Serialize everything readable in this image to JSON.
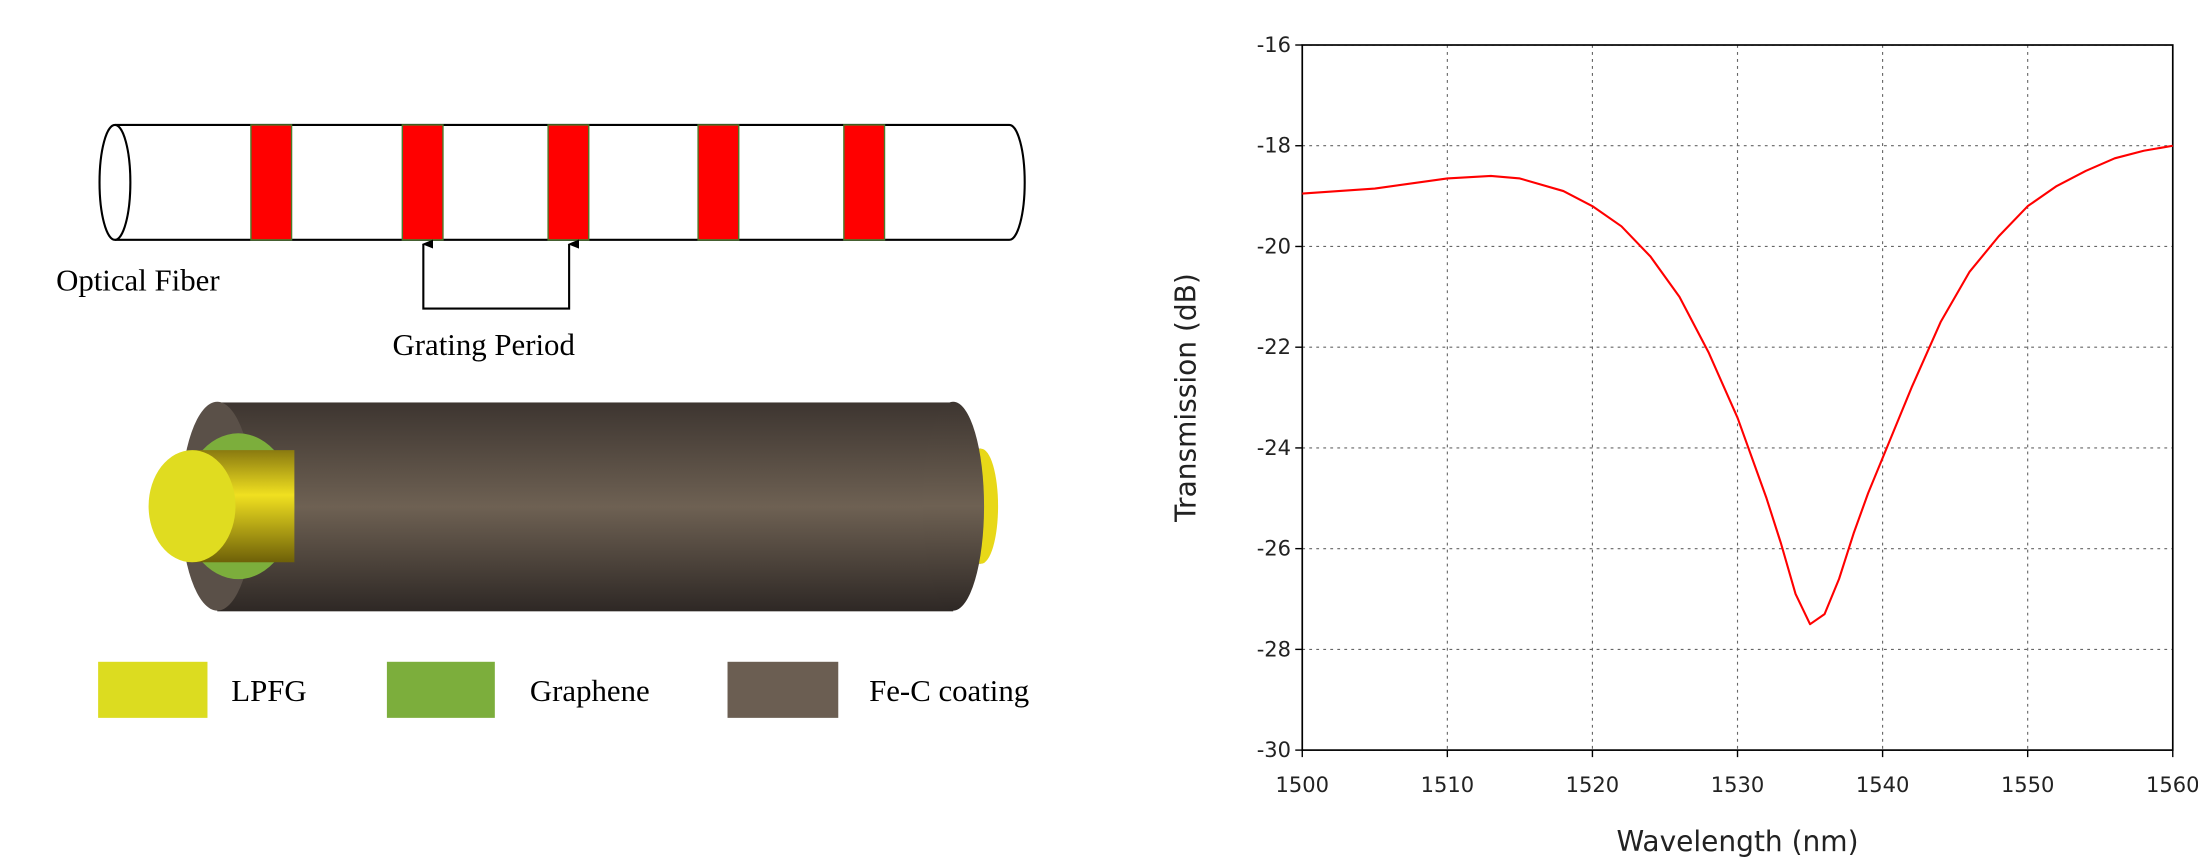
{
  "diagram": {
    "fiber_label": "Optical Fiber",
    "period_label": "Grating Period",
    "legend": [
      "LPFG",
      "Graphene",
      "Fe-C coating"
    ]
  },
  "chart_data": {
    "type": "line",
    "xlabel": "Wavelength (nm)",
    "ylabel": "Transmission (dB)",
    "x": [
      1500,
      1505,
      1510,
      1513,
      1515,
      1518,
      1520,
      1522,
      1524,
      1526,
      1528,
      1530,
      1531,
      1532,
      1533,
      1534,
      1535,
      1536,
      1537,
      1538,
      1539,
      1540,
      1542,
      1544,
      1546,
      1548,
      1550,
      1552,
      1554,
      1556,
      1558,
      1560
    ],
    "values": [
      -18.95,
      -18.85,
      -18.65,
      -18.6,
      -18.65,
      -18.9,
      -19.2,
      -19.6,
      -20.2,
      -21.0,
      -22.1,
      -23.4,
      -24.2,
      -25.0,
      -25.9,
      -26.9,
      -27.5,
      -27.3,
      -26.6,
      -25.7,
      -24.9,
      -24.2,
      -22.8,
      -21.5,
      -20.5,
      -19.8,
      -19.2,
      -18.8,
      -18.5,
      -18.25,
      -18.1,
      -18.0
    ],
    "color": "#ff0000",
    "xlim": [
      1500,
      1560
    ],
    "ylim": [
      -30,
      -16
    ],
    "xticks": [
      1500,
      1510,
      1520,
      1530,
      1540,
      1550,
      1560
    ],
    "yticks": [
      -30,
      -28,
      -26,
      -24,
      -22,
      -20,
      -18,
      -16
    ],
    "grid": true
  }
}
